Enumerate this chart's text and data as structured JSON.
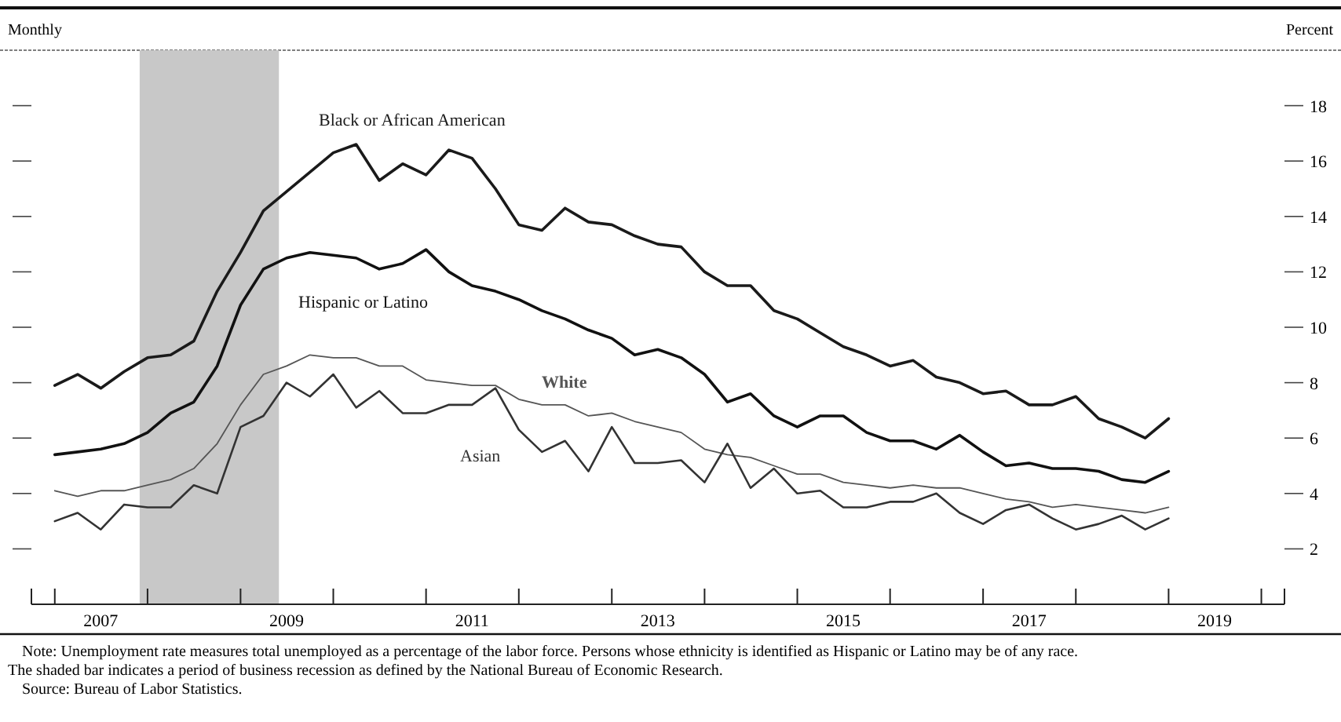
{
  "chart_data": {
    "type": "line",
    "subtitle": "Monthly",
    "ylabel": "Percent",
    "x": [
      "2007-01",
      "2007-04",
      "2007-07",
      "2007-10",
      "2008-01",
      "2008-04",
      "2008-07",
      "2008-10",
      "2009-01",
      "2009-04",
      "2009-07",
      "2009-10",
      "2010-01",
      "2010-04",
      "2010-07",
      "2010-10",
      "2011-01",
      "2011-04",
      "2011-07",
      "2011-10",
      "2012-01",
      "2012-04",
      "2012-07",
      "2012-10",
      "2013-01",
      "2013-04",
      "2013-07",
      "2013-10",
      "2014-01",
      "2014-04",
      "2014-07",
      "2014-10",
      "2015-01",
      "2015-04",
      "2015-07",
      "2015-10",
      "2016-01",
      "2016-04",
      "2016-07",
      "2016-10",
      "2017-01",
      "2017-04",
      "2017-07",
      "2017-10",
      "2018-01",
      "2018-04",
      "2018-07",
      "2018-10",
      "2019-01"
    ],
    "series": [
      {
        "name": "Black or African American",
        "color": "#1a1a1a",
        "values": [
          7.9,
          8.3,
          7.8,
          8.4,
          8.9,
          9.0,
          9.5,
          11.3,
          12.7,
          14.2,
          14.9,
          15.6,
          16.3,
          16.6,
          15.3,
          15.9,
          15.5,
          16.4,
          16.1,
          15.0,
          13.7,
          13.5,
          14.3,
          13.8,
          13.7,
          13.3,
          13.0,
          12.9,
          12.0,
          11.5,
          11.5,
          10.6,
          10.3,
          9.8,
          9.3,
          9.0,
          8.6,
          8.8,
          8.2,
          8.0,
          7.6,
          7.7,
          7.2,
          7.2,
          7.5,
          6.7,
          6.4,
          6.0,
          6.7
        ]
      },
      {
        "name": "Hispanic or Latino",
        "color": "#111111",
        "values": [
          5.4,
          5.5,
          5.6,
          5.8,
          6.2,
          6.9,
          7.3,
          8.6,
          10.8,
          12.1,
          12.5,
          12.7,
          12.6,
          12.5,
          12.1,
          12.3,
          12.8,
          12.0,
          11.5,
          11.3,
          11.0,
          10.6,
          10.3,
          9.9,
          9.6,
          9.0,
          9.2,
          8.9,
          8.3,
          7.3,
          7.6,
          6.8,
          6.4,
          6.8,
          6.8,
          6.2,
          5.9,
          5.9,
          5.6,
          6.1,
          5.5,
          5.0,
          5.1,
          4.9,
          4.9,
          4.8,
          4.5,
          4.4,
          4.8
        ]
      },
      {
        "name": "White",
        "color": "#555555",
        "values": [
          4.1,
          3.9,
          4.1,
          4.1,
          4.3,
          4.5,
          4.9,
          5.8,
          7.2,
          8.3,
          8.6,
          9.0,
          8.9,
          8.9,
          8.6,
          8.6,
          8.1,
          8.0,
          7.9,
          7.9,
          7.4,
          7.2,
          7.2,
          6.8,
          6.9,
          6.6,
          6.4,
          6.2,
          5.6,
          5.4,
          5.3,
          5.0,
          4.7,
          4.7,
          4.4,
          4.3,
          4.2,
          4.3,
          4.2,
          4.2,
          4.0,
          3.8,
          3.7,
          3.5,
          3.6,
          3.5,
          3.4,
          3.3,
          3.5
        ]
      },
      {
        "name": "Asian",
        "color": "#333333",
        "values": [
          3.0,
          3.3,
          2.7,
          3.6,
          3.5,
          3.5,
          4.3,
          4.0,
          6.4,
          6.8,
          8.0,
          7.5,
          8.3,
          7.1,
          7.7,
          6.9,
          6.9,
          7.2,
          7.2,
          7.8,
          6.3,
          5.5,
          5.9,
          4.8,
          6.4,
          5.1,
          5.1,
          5.2,
          4.4,
          5.8,
          4.2,
          4.9,
          4.0,
          4.1,
          3.5,
          3.5,
          3.7,
          3.7,
          4.0,
          3.3,
          2.9,
          3.4,
          3.6,
          3.1,
          2.7,
          2.9,
          3.2,
          2.7,
          3.1
        ]
      }
    ],
    "xlim": [
      "2006-10",
      "2020-04"
    ],
    "xticks": [
      {
        "value": "2007-01",
        "label": null
      },
      {
        "value": "2008-01",
        "label": null
      },
      {
        "value": "2009-01",
        "label": null
      },
      {
        "value": "2010-01",
        "label": null
      },
      {
        "value": "2011-01",
        "label": null
      },
      {
        "value": "2012-01",
        "label": null
      },
      {
        "value": "2013-01",
        "label": null
      },
      {
        "value": "2014-01",
        "label": null
      },
      {
        "value": "2015-01",
        "label": null
      },
      {
        "value": "2016-01",
        "label": null
      },
      {
        "value": "2017-01",
        "label": null
      },
      {
        "value": "2018-01",
        "label": null
      },
      {
        "value": "2019-01",
        "label": null
      },
      {
        "value": "2020-01",
        "label": null
      },
      {
        "value": "2007-07",
        "label": "2007"
      },
      {
        "value": "2009-07",
        "label": "2009"
      },
      {
        "value": "2011-07",
        "label": "2011"
      },
      {
        "value": "2013-07",
        "label": "2013"
      },
      {
        "value": "2015-07",
        "label": "2015"
      },
      {
        "value": "2017-07",
        "label": "2017"
      },
      {
        "value": "2019-07",
        "label": "2019"
      }
    ],
    "ylim": [
      0,
      20
    ],
    "yticks": [
      2,
      4,
      6,
      8,
      10,
      12,
      14,
      16,
      18
    ],
    "bands": [
      {
        "axis": "x",
        "from": "2007-12",
        "to": "2009-06",
        "color": "#c8c8c8"
      }
    ],
    "grid": false,
    "annotations": [
      "Note: Unemployment rate measures total unemployed as a percentage of the labor force. Persons whose ethnicity is identified as Hispanic or Latino may be of any race. The shaded bar indicates a period of business recession as defined by the National Bureau of Economic Research.",
      "Source: Bureau of Labor Statistics."
    ]
  }
}
